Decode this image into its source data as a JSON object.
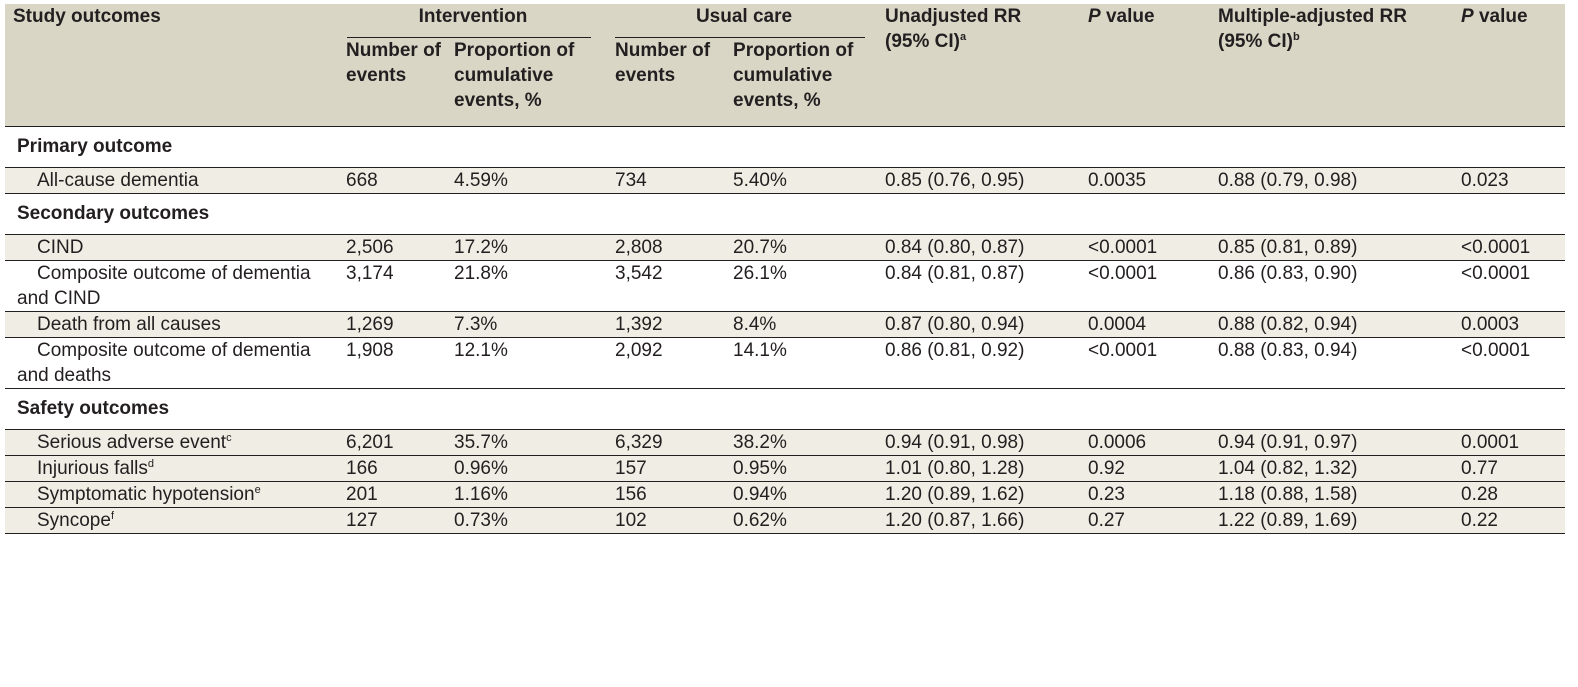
{
  "header": {
    "study_outcomes": "Study outcomes",
    "intervention": "Intervention",
    "usual_care": "Usual care",
    "number_of_events": "Number of events",
    "proportion": "Proportion of cumulative events, %",
    "unadjusted_rr": "Unadjusted RR (95% CI)",
    "unadjusted_sup": "a",
    "p_value_p": "P",
    "p_value_label": " value",
    "multiple_adjusted": "Multiple-adjusted RR (95% CI)",
    "multiple_sup": "b"
  },
  "sections": {
    "primary": "Primary outcome",
    "secondary": "Secondary outcomes",
    "safety": "Safety outcomes"
  },
  "rows": {
    "dementia": {
      "label": "All-cause dementia",
      "n_int": "668",
      "p_int": "4.59%",
      "n_uc": "734",
      "p_uc": "5.40%",
      "rr": "0.85 (0.76, 0.95)",
      "p1": "0.0035",
      "arr": "0.88 (0.79, 0.98)",
      "p2": "0.023"
    },
    "cind": {
      "label": "CIND",
      "n_int": "2,506",
      "p_int": "17.2%",
      "n_uc": "2,808",
      "p_uc": "20.7%",
      "rr": "0.84 (0.80, 0.87)",
      "p1": "<0.0001",
      "arr": "0.85 (0.81, 0.89)",
      "p2": "<0.0001"
    },
    "comp_cind": {
      "label": "Composite outcome of dementia and CIND",
      "n_int": "3,174",
      "p_int": "21.8%",
      "n_uc": "3,542",
      "p_uc": "26.1%",
      "rr": "0.84 (0.81, 0.87)",
      "p1": "<0.0001",
      "arr": "0.86 (0.83, 0.90)",
      "p2": "<0.0001"
    },
    "death": {
      "label": "Death from all causes",
      "n_int": "1,269",
      "p_int": "7.3%",
      "n_uc": "1,392",
      "p_uc": "8.4%",
      "rr": "0.87 (0.80, 0.94)",
      "p1": "0.0004",
      "arr": "0.88 (0.82, 0.94)",
      "p2": "0.0003"
    },
    "comp_death": {
      "label": "Composite outcome of dementia and deaths",
      "n_int": "1,908",
      "p_int": "12.1%",
      "n_uc": "2,092",
      "p_uc": "14.1%",
      "rr": "0.86 (0.81, 0.92)",
      "p1": "<0.0001",
      "arr": "0.88 (0.83, 0.94)",
      "p2": "<0.0001"
    },
    "sae": {
      "label": "Serious adverse event",
      "sup": "c",
      "n_int": "6,201",
      "p_int": "35.7%",
      "n_uc": "6,329",
      "p_uc": "38.2%",
      "rr": "0.94 (0.91, 0.98)",
      "p1": "0.0006",
      "arr": "0.94 (0.91, 0.97)",
      "p2": "0.0001"
    },
    "falls": {
      "label": "Injurious falls",
      "sup": "d",
      "n_int": "166",
      "p_int": "0.96%",
      "n_uc": "157",
      "p_uc": "0.95%",
      "rr": "1.01 (0.80, 1.28)",
      "p1": "0.92",
      "arr": "1.04 (0.82, 1.32)",
      "p2": "0.77"
    },
    "hypo": {
      "label": "Symptomatic hypotension",
      "sup": "e",
      "n_int": "201",
      "p_int": "1.16%",
      "n_uc": "156",
      "p_uc": "0.94%",
      "rr": "1.20 (0.89, 1.62)",
      "p1": "0.23",
      "arr": "1.18 (0.88, 1.58)",
      "p2": "0.28"
    },
    "syncope": {
      "label": "Syncope",
      "sup": "f",
      "n_int": "127",
      "p_int": "0.73%",
      "n_uc": "102",
      "p_uc": "0.62%",
      "rr": "1.20 (0.87, 1.66)",
      "p1": "0.27",
      "arr": "1.22 (0.89, 1.69)",
      "p2": "0.22"
    }
  },
  "colors": {
    "header_bg": "#d9d6c6",
    "shaded_row_bg": "#efede4",
    "text": "#231f20"
  }
}
